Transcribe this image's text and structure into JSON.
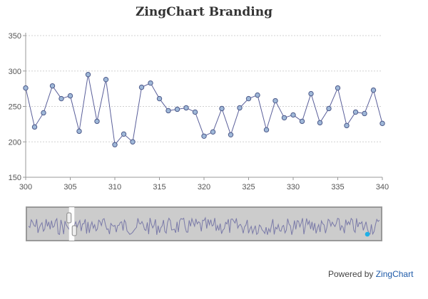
{
  "chart_data": {
    "type": "line",
    "title": "ZingChart Branding",
    "xlabel": "",
    "ylabel": "",
    "xlim": [
      300,
      340
    ],
    "ylim": [
      150,
      350
    ],
    "x_ticks": [
      300,
      305,
      310,
      315,
      320,
      325,
      330,
      335,
      340
    ],
    "y_ticks": [
      150,
      200,
      250,
      300,
      350
    ],
    "grid": true,
    "series": [
      {
        "x": [
          300,
          301,
          302,
          303,
          304,
          305,
          306,
          307,
          308,
          309,
          310,
          311,
          312,
          313,
          314,
          315,
          316,
          317,
          318,
          319,
          320,
          321,
          322,
          323,
          324,
          325,
          326,
          327,
          328,
          329,
          330,
          331,
          332,
          333,
          334,
          335,
          336,
          337,
          338,
          339,
          340
        ],
        "values": [
          276,
          221,
          241,
          279,
          261,
          265,
          215,
          295,
          229,
          288,
          196,
          211,
          200,
          277,
          283,
          261,
          244,
          246,
          248,
          242,
          208,
          214,
          247,
          210,
          248,
          261,
          266,
          217,
          258,
          234,
          238,
          229,
          268,
          227,
          247,
          276,
          223,
          242,
          240,
          273,
          226
        ]
      }
    ]
  },
  "preview": {
    "handle_range": [
      0.12,
      0.135
    ]
  },
  "colors": {
    "line": "#5a5f9a",
    "marker_fill": "#9fb8d8",
    "marker_stroke": "#4d5a8a",
    "preview_bg": "#cccccc",
    "preview_line": "#7a7aa8",
    "dot": "#1eb0e6",
    "brand": "#1e5aa8"
  },
  "credit": {
    "prefix": "Powered by",
    "brand": "ZingChart"
  }
}
